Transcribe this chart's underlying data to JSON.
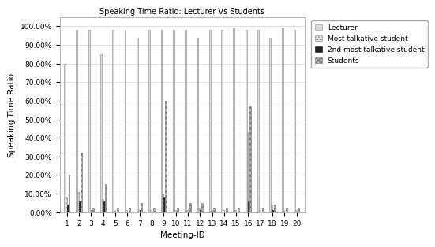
{
  "title": "Speaking Time Ratio: Lecturer Vs Students",
  "xlabel": "Meeting-ID",
  "ylabel": "Speaking Time Ratio",
  "meetings": [
    1,
    2,
    3,
    4,
    5,
    6,
    7,
    8,
    9,
    10,
    11,
    12,
    13,
    14,
    15,
    16,
    17,
    18,
    19,
    20
  ],
  "lecturer": [
    0.8,
    0.98,
    0.98,
    0.85,
    0.98,
    0.98,
    0.94,
    0.98,
    0.98,
    0.98,
    0.98,
    0.94,
    0.98,
    0.98,
    0.99,
    0.98,
    0.98,
    0.94,
    0.99,
    0.98
  ],
  "most_talkative": [
    0.08,
    0.11,
    0.01,
    0.07,
    0.01,
    0.01,
    0.01,
    0.01,
    0.1,
    0.01,
    0.01,
    0.02,
    0.01,
    0.01,
    0.01,
    0.43,
    0.01,
    0.04,
    0.01,
    0.01
  ],
  "second_most_talkative": [
    0.04,
    0.06,
    0.005,
    0.06,
    0.005,
    0.005,
    0.01,
    0.005,
    0.08,
    0.005,
    0.005,
    0.01,
    0.005,
    0.005,
    0.005,
    0.06,
    0.005,
    0.01,
    0.005,
    0.005
  ],
  "students": [
    0.2,
    0.32,
    0.02,
    0.15,
    0.02,
    0.02,
    0.05,
    0.02,
    0.6,
    0.02,
    0.05,
    0.05,
    0.02,
    0.02,
    0.02,
    0.57,
    0.02,
    0.04,
    0.02,
    0.02
  ],
  "ylim": [
    0,
    1.05
  ],
  "yticks": [
    0.0,
    0.1,
    0.2,
    0.3,
    0.4,
    0.5,
    0.6,
    0.7,
    0.8,
    0.9,
    1.0
  ],
  "ytick_labels": [
    "0.00%",
    "10.00%",
    "20.00%",
    "30.00%",
    "40.00%",
    "50.00%",
    "60.00%",
    "70.00%",
    "80.00%",
    "90.00%",
    "100.00%"
  ],
  "legend_labels": [
    "Lecturer",
    "Most talkative student",
    "2nd most talkative student",
    "Students"
  ],
  "bar_width": 0.12
}
